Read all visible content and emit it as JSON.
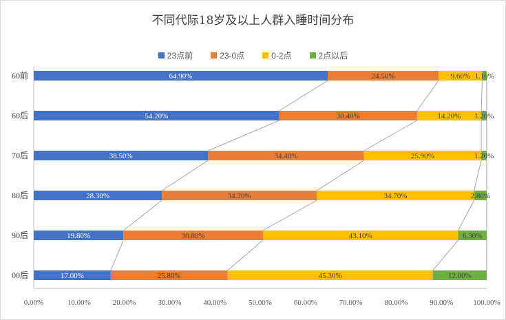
{
  "chart_data": {
    "type": "bar",
    "orientation": "horizontal",
    "stacked": true,
    "title": "不同代际18岁及以上人群入睡时间分布",
    "categories": [
      "60前",
      "60后",
      "70后",
      "80后",
      "90后",
      "00后"
    ],
    "series": [
      {
        "name": "23点前",
        "color": "#4472C4",
        "values": [
          64.9,
          54.2,
          38.5,
          28.3,
          19.8,
          17.0
        ],
        "labels": [
          "64.90%",
          "54.20%",
          "38.50%",
          "28.30%",
          "19.80%",
          "17.00%"
        ]
      },
      {
        "name": "23-0点",
        "color": "#ED7D31",
        "values": [
          24.5,
          30.4,
          34.4,
          34.2,
          30.8,
          25.8
        ],
        "labels": [
          "24.50%",
          "30.40%",
          "34.40%",
          "34.20%",
          "30.80%",
          "25.80%"
        ]
      },
      {
        "name": "0-2点",
        "color": "#FFC000",
        "values": [
          9.6,
          14.2,
          25.9,
          34.7,
          43.1,
          45.3
        ],
        "labels": [
          "9.60%",
          "14.20%",
          "25.90%",
          "34.70%",
          "43.10%",
          "45.30%"
        ]
      },
      {
        "name": "2点以后",
        "color": "#70AD47",
        "values": [
          1.1,
          1.2,
          1.2,
          2.8,
          6.3,
          12.0
        ],
        "labels": [
          "1.10%",
          "1.20%",
          "1.20%",
          "2.80%",
          "6.30%",
          "12.00%"
        ]
      }
    ],
    "xlim": [
      0,
      100
    ],
    "xticks": [
      "0.00%",
      "10.00%",
      "20.00%",
      "30.00%",
      "40.00%",
      "50.00%",
      "60.00%",
      "70.00%",
      "80.00%",
      "90.00%",
      "100.00%"
    ],
    "series_lines": true,
    "legend": "top",
    "grid": false
  }
}
